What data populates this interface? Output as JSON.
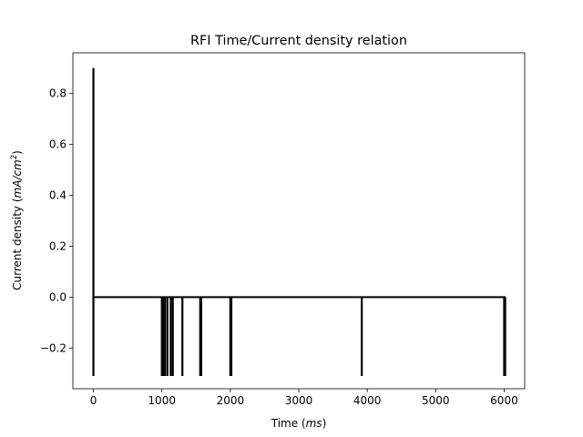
{
  "chart_data": {
    "type": "line",
    "title": "RFI Time/Current density relation",
    "xlabel": {
      "prefix": "Time (",
      "unit": "ms",
      "suffix": ")"
    },
    "ylabel": {
      "prefix": "Current density (",
      "unit": "mA/cm",
      "sup": "2",
      "suffix": ")"
    },
    "xlim": [
      -300,
      6300
    ],
    "ylim": [
      -0.36,
      0.96
    ],
    "x_ticks": [
      0,
      1000,
      2000,
      3000,
      4000,
      5000,
      6000
    ],
    "x_tick_labels": [
      "0",
      "1000",
      "2000",
      "3000",
      "4000",
      "5000",
      "6000"
    ],
    "y_ticks": [
      -0.2,
      0.0,
      0.2,
      0.4,
      0.6,
      0.8
    ],
    "y_tick_labels": [
      "−0.2",
      "0.0",
      "0.2",
      "0.4",
      "0.6",
      "0.8"
    ],
    "grid": false,
    "legend": "none",
    "series": [
      {
        "color": "#000000",
        "baseline": 0.0,
        "end_x": 6020,
        "events": [
          {
            "x": 0,
            "peak": 0.9,
            "trough": -0.31
          },
          {
            "x": 1000,
            "trough": -0.31
          },
          {
            "x": 1020,
            "trough": -0.31
          },
          {
            "x": 1045,
            "trough": -0.31
          },
          {
            "x": 1080,
            "trough": -0.31
          },
          {
            "x": 1130,
            "trough": -0.31
          },
          {
            "x": 1160,
            "trough": -0.31
          },
          {
            "x": 1300,
            "trough": -0.31
          },
          {
            "x": 1560,
            "trough": -0.31
          },
          {
            "x": 1575,
            "trough": -0.31
          },
          {
            "x": 2000,
            "trough": -0.31
          },
          {
            "x": 2015,
            "trough": -0.31
          },
          {
            "x": 3920,
            "trough": -0.31
          },
          {
            "x": 6000,
            "trough": -0.31
          },
          {
            "x": 6015,
            "trough": -0.31
          }
        ]
      }
    ]
  }
}
